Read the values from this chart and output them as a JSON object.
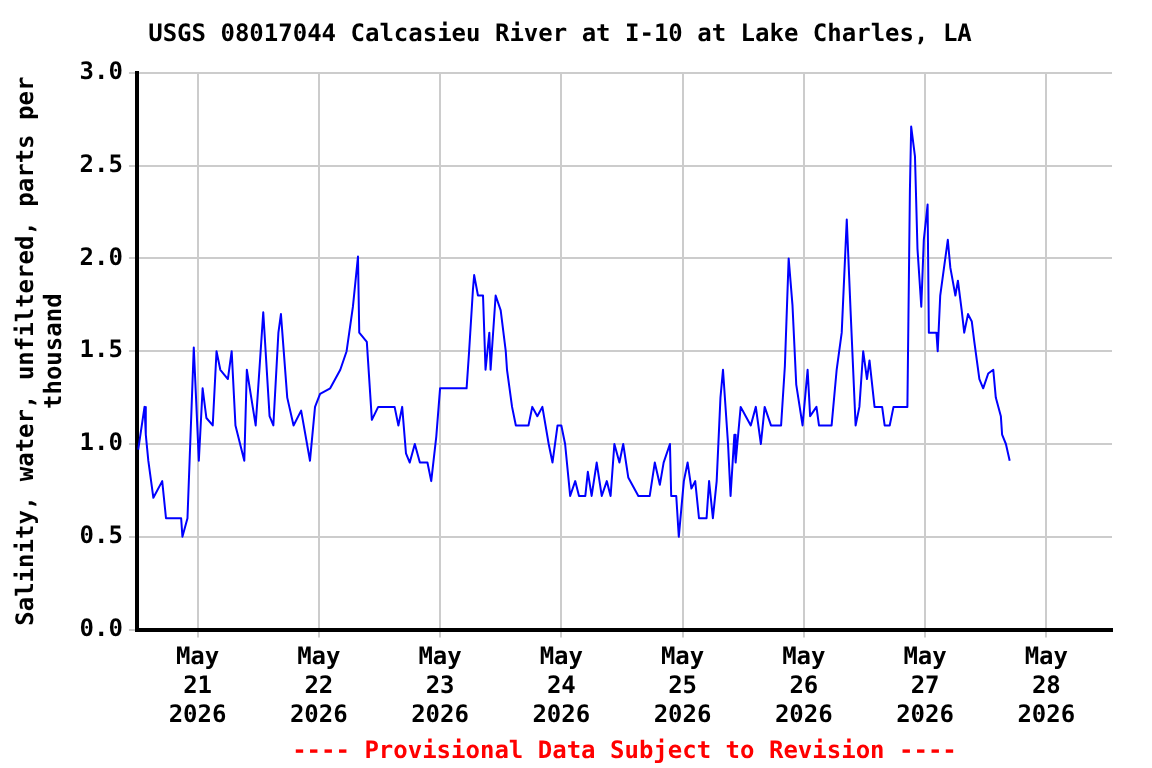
{
  "chart_data": {
    "type": "line",
    "title": "USGS 08017044 Calcasieu River at I-10 at Lake Charles, LA",
    "ylabel": "Salinity, water, unfiltered, parts per thousand",
    "annotations": [
      "---- Provisional Data Subject to Revision ----"
    ],
    "xlim": [
      "2026-05-20T12:00",
      "2026-05-28T13:00"
    ],
    "xticks": [
      {
        "value": "2026-05-21",
        "label": "May\n21\n2026"
      },
      {
        "value": "2026-05-22",
        "label": "May\n22\n2026"
      },
      {
        "value": "2026-05-23",
        "label": "May\n23\n2026"
      },
      {
        "value": "2026-05-24",
        "label": "May\n24\n2026"
      },
      {
        "value": "2026-05-25",
        "label": "May\n25\n2026"
      },
      {
        "value": "2026-05-26",
        "label": "May\n26\n2026"
      },
      {
        "value": "2026-05-27",
        "label": "May\n27\n2026"
      },
      {
        "value": "2026-05-28",
        "label": "May\n28\n2026"
      }
    ],
    "ylim": [
      0,
      3
    ],
    "yticks": [
      {
        "value": 0,
        "label": "0.0"
      },
      0.5,
      {
        "value": 1,
        "label": "1.0"
      },
      1.5,
      {
        "value": 2,
        "label": "2.0"
      },
      2.5,
      {
        "value": 3,
        "label": "3.0"
      }
    ],
    "grid": true,
    "series": [
      {
        "color": "#0000ff",
        "x": [
          "2026-05-20T12:15",
          "2026-05-20T13:30",
          "2026-05-20T13:45",
          "2026-05-20T14:15",
          "2026-05-20T15:15",
          "2026-05-20T17:00",
          "2026-05-20T17:45",
          "2026-05-20T20:45",
          "2026-05-20T21:00",
          "2026-05-20T22:00",
          "2026-05-20T23:15",
          "2026-05-21T00:15",
          "2026-05-21T01:00",
          "2026-05-21T01:45",
          "2026-05-21T03:00",
          "2026-05-21T03:45",
          "2026-05-21T04:30",
          "2026-05-21T06:00",
          "2026-05-21T06:45",
          "2026-05-21T07:30",
          "2026-05-21T09:15",
          "2026-05-21T09:45",
          "2026-05-21T11:30",
          "2026-05-21T13:00",
          "2026-05-21T14:15",
          "2026-05-21T15:00",
          "2026-05-21T16:00",
          "2026-05-21T16:30",
          "2026-05-21T17:45",
          "2026-05-21T19:00",
          "2026-05-21T20:30",
          "2026-05-21T22:15",
          "2026-05-21T23:15",
          "2026-05-22T00:15",
          "2026-05-22T02:15",
          "2026-05-22T04:15",
          "2026-05-22T05:30",
          "2026-05-22T06:45",
          "2026-05-22T07:45",
          "2026-05-22T08:00",
          "2026-05-22T09:30",
          "2026-05-22T10:30",
          "2026-05-22T11:45",
          "2026-05-22T15:00",
          "2026-05-22T15:45",
          "2026-05-22T16:30",
          "2026-05-22T17:15",
          "2026-05-22T18:00",
          "2026-05-22T19:00",
          "2026-05-22T20:00",
          "2026-05-22T21:30",
          "2026-05-22T22:15",
          "2026-05-22T23:15",
          "2026-05-23T00:00",
          "2026-05-23T05:15",
          "2026-05-23T05:45",
          "2026-05-23T06:30",
          "2026-05-23T06:45",
          "2026-05-23T07:30",
          "2026-05-23T08:30",
          "2026-05-23T09:00",
          "2026-05-23T09:45",
          "2026-05-23T10:00",
          "2026-05-23T11:00",
          "2026-05-23T12:00",
          "2026-05-23T13:00",
          "2026-05-23T13:15",
          "2026-05-23T14:15",
          "2026-05-23T15:00",
          "2026-05-23T17:30",
          "2026-05-23T18:15",
          "2026-05-23T19:15",
          "2026-05-23T20:15",
          "2026-05-23T21:30",
          "2026-05-23T22:15",
          "2026-05-23T23:15",
          "2026-05-24T00:00",
          "2026-05-24T00:45",
          "2026-05-24T01:45",
          "2026-05-24T02:45",
          "2026-05-24T03:30",
          "2026-05-24T04:45",
          "2026-05-24T05:15",
          "2026-05-24T06:00",
          "2026-05-24T07:00",
          "2026-05-24T08:00",
          "2026-05-24T09:00",
          "2026-05-24T09:45",
          "2026-05-24T10:30",
          "2026-05-24T11:30",
          "2026-05-24T12:15",
          "2026-05-24T13:15",
          "2026-05-24T15:15",
          "2026-05-24T17:30",
          "2026-05-24T18:30",
          "2026-05-24T19:30",
          "2026-05-24T20:15",
          "2026-05-24T21:30",
          "2026-05-24T21:45",
          "2026-05-24T22:45",
          "2026-05-24T23:15",
          "2026-05-25T00:15",
          "2026-05-25T01:00",
          "2026-05-25T01:45",
          "2026-05-25T02:30",
          "2026-05-25T03:15",
          "2026-05-25T04:45",
          "2026-05-25T05:15",
          "2026-05-25T06:00",
          "2026-05-25T06:45",
          "2026-05-25T07:30",
          "2026-05-25T08:00",
          "2026-05-25T09:00",
          "2026-05-25T09:30",
          "2026-05-25T10:15",
          "2026-05-25T10:30",
          "2026-05-25T11:30",
          "2026-05-25T12:30",
          "2026-05-25T13:30",
          "2026-05-25T14:30",
          "2026-05-25T15:30",
          "2026-05-25T16:15",
          "2026-05-25T17:30",
          "2026-05-25T19:30",
          "2026-05-25T20:15",
          "2026-05-25T21:00",
          "2026-05-25T21:45",
          "2026-05-25T22:30",
          "2026-05-25T23:45",
          "2026-05-26T00:45",
          "2026-05-26T01:15",
          "2026-05-26T02:30",
          "2026-05-26T03:00",
          "2026-05-26T05:30",
          "2026-05-26T06:30",
          "2026-05-26T07:30",
          "2026-05-26T08:30",
          "2026-05-26T09:15",
          "2026-05-26T10:15",
          "2026-05-26T11:00",
          "2026-05-26T11:45",
          "2026-05-26T12:30",
          "2026-05-26T13:00",
          "2026-05-26T14:00",
          "2026-05-26T15:30",
          "2026-05-26T16:00",
          "2026-05-26T17:00",
          "2026-05-26T17:45",
          "2026-05-26T20:30",
          "2026-05-26T21:00",
          "2026-05-26T21:15",
          "2026-05-26T22:00",
          "2026-05-26T22:30",
          "2026-05-26T23:15",
          "2026-05-26T23:45",
          "2026-05-27T00:30",
          "2026-05-27T00:45",
          "2026-05-27T02:15",
          "2026-05-27T02:30",
          "2026-05-27T03:00",
          "2026-05-27T03:45",
          "2026-05-27T04:30",
          "2026-05-27T05:00",
          "2026-05-27T06:00",
          "2026-05-27T06:30",
          "2026-05-27T07:15",
          "2026-05-27T07:45",
          "2026-05-27T08:30",
          "2026-05-27T09:15",
          "2026-05-27T09:45",
          "2026-05-27T10:45",
          "2026-05-27T11:30",
          "2026-05-27T12:30",
          "2026-05-27T13:30",
          "2026-05-27T14:00",
          "2026-05-27T15:00",
          "2026-05-27T15:15",
          "2026-05-27T16:00",
          "2026-05-27T16:45"
        ],
        "values": [
          0.97,
          1.2,
          1.05,
          0.91,
          0.71,
          0.8,
          0.6,
          0.6,
          0.5,
          0.6,
          1.52,
          0.91,
          1.3,
          1.14,
          1.1,
          1.5,
          1.4,
          1.35,
          1.5,
          1.1,
          0.91,
          1.4,
          1.1,
          1.71,
          1.15,
          1.1,
          1.6,
          1.7,
          1.25,
          1.1,
          1.18,
          0.91,
          1.2,
          1.27,
          1.3,
          1.4,
          1.5,
          1.74,
          2.01,
          1.6,
          1.55,
          1.13,
          1.2,
          1.2,
          1.1,
          1.2,
          0.95,
          0.9,
          1.0,
          0.9,
          0.9,
          0.8,
          1.04,
          1.3,
          1.3,
          1.5,
          1.83,
          1.91,
          1.8,
          1.8,
          1.4,
          1.6,
          1.4,
          1.8,
          1.72,
          1.5,
          1.4,
          1.2,
          1.1,
          1.1,
          1.2,
          1.15,
          1.2,
          1.0,
          0.9,
          1.1,
          1.1,
          1.0,
          0.72,
          0.8,
          0.72,
          0.72,
          0.85,
          0.72,
          0.9,
          0.72,
          0.8,
          0.72,
          1.0,
          0.9,
          1.0,
          0.82,
          0.72,
          0.72,
          0.9,
          0.78,
          0.9,
          1.0,
          0.72,
          0.72,
          0.5,
          0.8,
          0.9,
          0.76,
          0.8,
          0.6,
          0.6,
          0.8,
          0.6,
          0.8,
          1.25,
          1.4,
          1.0,
          0.72,
          1.05,
          0.9,
          1.2,
          1.15,
          1.1,
          1.2,
          1.0,
          1.2,
          1.1,
          1.1,
          1.42,
          2.0,
          1.75,
          1.32,
          1.1,
          1.4,
          1.15,
          1.2,
          1.1,
          1.1,
          1.4,
          1.6,
          2.21,
          1.72,
          1.1,
          1.2,
          1.5,
          1.35,
          1.45,
          1.2,
          1.2,
          1.1,
          1.1,
          1.2,
          1.2,
          2.37,
          2.71,
          2.55,
          2.05,
          1.74,
          2.1,
          2.29,
          1.6,
          1.6,
          1.5,
          1.8,
          1.95,
          2.1,
          1.95,
          1.8,
          1.88,
          1.72,
          1.6,
          1.7,
          1.66,
          1.55,
          1.35,
          1.3,
          1.38,
          1.4,
          1.25,
          1.15,
          1.05,
          1.0,
          0.91
        ]
      }
    ]
  }
}
